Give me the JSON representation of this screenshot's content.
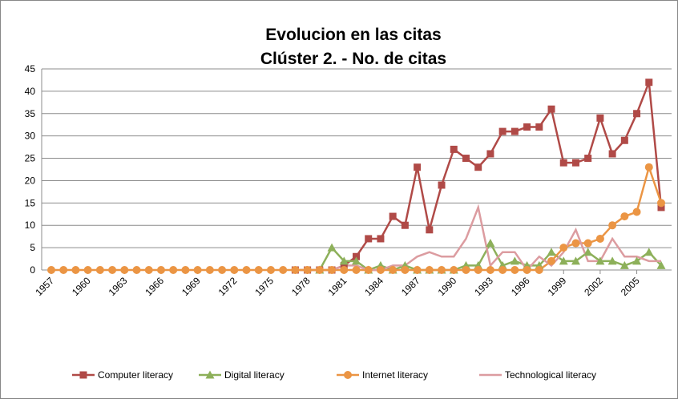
{
  "chart_data": {
    "type": "line",
    "title": [
      "Evolucion en las citas",
      "Clúster  2. - No. de citas"
    ],
    "x": [
      1957,
      1958,
      1959,
      1960,
      1961,
      1962,
      1963,
      1964,
      1965,
      1966,
      1967,
      1968,
      1969,
      1970,
      1971,
      1972,
      1973,
      1974,
      1975,
      1976,
      1977,
      1978,
      1979,
      1980,
      1981,
      1982,
      1983,
      1984,
      1985,
      1986,
      1987,
      1988,
      1989,
      1990,
      1991,
      1992,
      1993,
      1994,
      1995,
      1996,
      1997,
      1998,
      1999,
      2000,
      2001,
      2002,
      2003,
      2004,
      2005,
      2006,
      2007
    ],
    "xlim": [
      1957,
      2007
    ],
    "xticks": [
      1957,
      1960,
      1963,
      1966,
      1969,
      1972,
      1975,
      1978,
      1981,
      1984,
      1987,
      1990,
      1993,
      1996,
      1999,
      2002,
      2005
    ],
    "ylim": [
      0,
      45
    ],
    "yticks": [
      0,
      5,
      10,
      15,
      20,
      25,
      30,
      35,
      40,
      45
    ],
    "grid": true,
    "legend": "bottom",
    "series": [
      {
        "name": "Computer literacy",
        "color": "#b04a47",
        "marker": "square",
        "values": [
          null,
          null,
          null,
          null,
          null,
          null,
          null,
          null,
          null,
          null,
          null,
          null,
          null,
          null,
          null,
          null,
          null,
          null,
          null,
          null,
          0,
          0,
          0,
          0,
          1,
          3,
          7,
          7,
          12,
          10,
          23,
          9,
          19,
          27,
          25,
          23,
          26,
          31,
          31,
          32,
          32,
          36,
          24,
          24,
          25,
          34,
          26,
          29,
          35,
          42,
          14
        ]
      },
      {
        "name": "Digital literacy",
        "color": "#8db05a",
        "marker": "triangle",
        "values": [
          null,
          null,
          null,
          null,
          null,
          null,
          null,
          null,
          null,
          null,
          null,
          null,
          null,
          null,
          null,
          null,
          null,
          null,
          null,
          null,
          null,
          null,
          0,
          5,
          2,
          2,
          0,
          1,
          0,
          1,
          0,
          0,
          0,
          0,
          1,
          1,
          6,
          1,
          2,
          1,
          1,
          4,
          2,
          2,
          4,
          2,
          2,
          1,
          2,
          4,
          1
        ]
      },
      {
        "name": "Internet literacy",
        "color": "#eb9544",
        "marker": "circle",
        "values": [
          0,
          0,
          0,
          0,
          0,
          0,
          0,
          0,
          0,
          0,
          0,
          0,
          0,
          0,
          0,
          0,
          0,
          0,
          0,
          0,
          0,
          0,
          0,
          0,
          0,
          0,
          0,
          0,
          0,
          0,
          0,
          0,
          0,
          0,
          0,
          0,
          0,
          0,
          0,
          0,
          0,
          2,
          5,
          6,
          6,
          7,
          10,
          12,
          13,
          23,
          15
        ]
      },
      {
        "name": "Technological literacy",
        "color": "#dc9ca0",
        "marker": "none",
        "values": [
          null,
          null,
          null,
          null,
          null,
          null,
          null,
          null,
          null,
          null,
          null,
          null,
          null,
          null,
          null,
          null,
          null,
          null,
          null,
          null,
          null,
          null,
          null,
          0,
          1,
          1,
          0,
          0,
          1,
          1,
          3,
          4,
          3,
          3,
          7,
          14,
          1,
          4,
          4,
          0,
          3,
          1,
          4,
          9,
          2,
          2,
          7,
          3,
          3,
          2,
          2
        ]
      }
    ]
  }
}
